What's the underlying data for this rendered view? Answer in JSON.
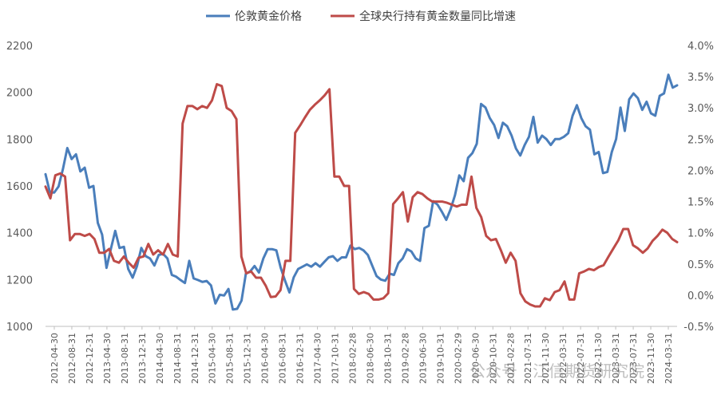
{
  "chart_data": {
    "type": "line",
    "title": "",
    "xlabel": "",
    "ylabel": "",
    "y_left": {
      "min": 1000,
      "max": 2200,
      "step": 200,
      "ticks": [
        "1000",
        "1200",
        "1400",
        "1600",
        "1800",
        "2000",
        "2200"
      ]
    },
    "y_right": {
      "min": -0.5,
      "max": 4.0,
      "step": 0.5,
      "ticks": [
        "-0.5%",
        "0.0%",
        "0.5%",
        "1.0%",
        "1.5%",
        "2.0%",
        "2.5%",
        "3.0%",
        "3.5%",
        "4.0%"
      ]
    },
    "legend": {
      "position": "top",
      "items": [
        {
          "label": "伦敦黄金价格",
          "color": "#4a7ebb"
        },
        {
          "label": "全球央行持有黄金数量同比增速",
          "color": "#be4b48"
        }
      ]
    },
    "grid": false,
    "x_ticks": [
      "2012-04-30",
      "2012-08-31",
      "2012-12-31",
      "2013-04-30",
      "2013-08-31",
      "2013-12-31",
      "2014-04-30",
      "2014-08-31",
      "2014-12-31",
      "2015-04-30",
      "2015-08-31",
      "2015-12-31",
      "2016-04-30",
      "2016-08-31",
      "2016-12-31",
      "2017-04-30",
      "2017-10-31",
      "2018-02-28",
      "2018-06-30",
      "2018-10-31",
      "2019-02-28",
      "2019-06-30",
      "2019-10-31",
      "2020-02-29",
      "2020-06-30",
      "2020-10-31",
      "2021-02-28",
      "2021-07-31",
      "2021-11-30",
      "2022-03-31",
      "2022-07-31",
      "2022-11-30",
      "2023-03-31",
      "2023-07-31",
      "2023-11-30",
      "2024-03-31"
    ],
    "series": [
      {
        "name": "伦敦黄金价格",
        "axis": "left",
        "color": "#4a7ebb",
        "values": [
          1650,
          1572,
          1572,
          1598,
          1672,
          1762,
          1715,
          1735,
          1662,
          1678,
          1592,
          1600,
          1442,
          1392,
          1250,
          1330,
          1408,
          1335,
          1340,
          1245,
          1208,
          1258,
          1335,
          1300,
          1290,
          1260,
          1305,
          1310,
          1290,
          1220,
          1212,
          1198,
          1185,
          1280,
          1205,
          1198,
          1190,
          1194,
          1175,
          1098,
          1135,
          1132,
          1160,
          1072,
          1075,
          1110,
          1225,
          1235,
          1258,
          1230,
          1290,
          1330,
          1330,
          1325,
          1250,
          1195,
          1145,
          1210,
          1245,
          1255,
          1265,
          1255,
          1270,
          1255,
          1275,
          1295,
          1300,
          1280,
          1295,
          1295,
          1345,
          1330,
          1335,
          1325,
          1305,
          1260,
          1215,
          1200,
          1195,
          1225,
          1220,
          1270,
          1290,
          1330,
          1320,
          1290,
          1280,
          1420,
          1430,
          1535,
          1520,
          1490,
          1455,
          1500,
          1560,
          1645,
          1620,
          1720,
          1740,
          1780,
          1950,
          1935,
          1890,
          1860,
          1805,
          1870,
          1855,
          1815,
          1760,
          1730,
          1775,
          1810,
          1895,
          1785,
          1815,
          1800,
          1775,
          1800,
          1800,
          1810,
          1825,
          1900,
          1945,
          1890,
          1855,
          1840,
          1735,
          1745,
          1655,
          1660,
          1745,
          1800,
          1935,
          1835,
          1970,
          1995,
          1975,
          1925,
          1960,
          1910,
          1900,
          1985,
          1995,
          2075,
          2020,
          2030
        ]
      },
      {
        "name": "全球央行持有黄金数量同比增速",
        "axis": "right",
        "color": "#be4b48",
        "values": [
          1.74,
          1.55,
          1.92,
          1.95,
          1.9,
          0.88,
          0.98,
          0.98,
          0.95,
          0.98,
          0.9,
          0.68,
          0.68,
          0.74,
          0.55,
          0.52,
          0.62,
          0.52,
          0.44,
          0.6,
          0.62,
          0.82,
          0.65,
          0.72,
          0.65,
          0.82,
          0.65,
          0.62,
          2.75,
          3.03,
          3.03,
          2.98,
          3.03,
          3.0,
          3.12,
          3.38,
          3.35,
          3.0,
          2.95,
          2.82,
          0.62,
          0.35,
          0.38,
          0.28,
          0.28,
          0.15,
          -0.03,
          -0.02,
          0.08,
          0.55,
          0.55,
          2.6,
          2.72,
          2.85,
          2.97,
          3.05,
          3.12,
          3.2,
          3.3,
          1.9,
          1.9,
          1.75,
          1.75,
          0.1,
          0.02,
          0.05,
          0.02,
          -0.07,
          -0.07,
          -0.05,
          0.03,
          1.46,
          1.55,
          1.65,
          1.18,
          1.57,
          1.65,
          1.62,
          1.55,
          1.5,
          1.5,
          1.5,
          1.48,
          1.45,
          1.42,
          1.45,
          1.45,
          1.9,
          1.4,
          1.25,
          0.95,
          0.88,
          0.9,
          0.72,
          0.52,
          0.68,
          0.55,
          0.03,
          -0.1,
          -0.15,
          -0.18,
          -0.18,
          -0.05,
          -0.08,
          0.05,
          0.08,
          0.22,
          -0.07,
          -0.07,
          0.35,
          0.38,
          0.42,
          0.4,
          0.45,
          0.48,
          0.62,
          0.75,
          0.88,
          1.06,
          1.06,
          0.8,
          0.75,
          0.68,
          0.75,
          0.87,
          0.95,
          1.05,
          1.0,
          0.9,
          0.85
        ]
      }
    ]
  },
  "watermark": "公众号 · 江信期货研究院"
}
